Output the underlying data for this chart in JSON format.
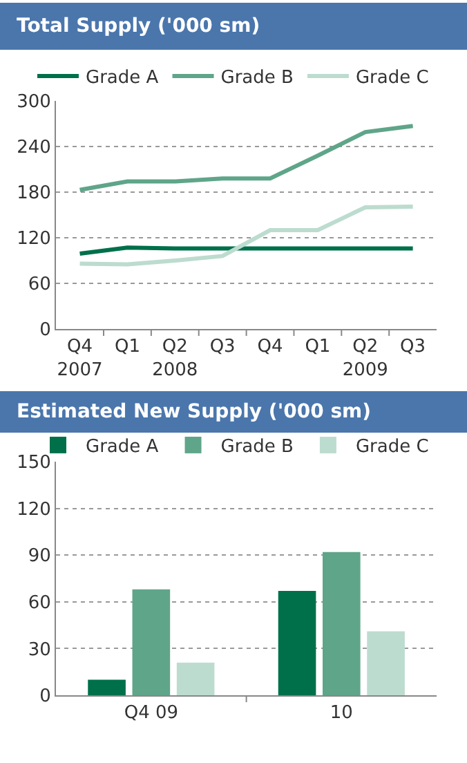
{
  "chart_data": [
    {
      "type": "line",
      "title": "Total Supply ('000 sm)",
      "categories": [
        "Q4\n2007",
        "Q1",
        "Q2\n2008",
        "Q3",
        "Q4",
        "Q1",
        "Q2\n2009",
        "Q3"
      ],
      "series": [
        {
          "name": "Grade A",
          "color": "#00704a",
          "values": [
            99,
            107,
            106,
            106,
            106,
            106,
            106,
            106
          ]
        },
        {
          "name": "Grade B",
          "color": "#5fa589",
          "values": [
            183,
            194,
            194,
            198,
            198,
            228,
            259,
            267
          ]
        },
        {
          "name": "Grade C",
          "color": "#bcdccf",
          "values": [
            86,
            85,
            90,
            96,
            130,
            130,
            160,
            161
          ]
        }
      ],
      "ylim": [
        0,
        300
      ],
      "yticks": [
        0,
        60,
        120,
        180,
        240,
        300
      ],
      "grid": "y",
      "legend": "top"
    },
    {
      "type": "bar",
      "title": "Estimated New Supply ('000 sm)",
      "categories": [
        "Q4 09",
        "10"
      ],
      "series": [
        {
          "name": "Grade A",
          "color": "#00704a",
          "values": [
            10,
            67
          ]
        },
        {
          "name": "Grade B",
          "color": "#5fa589",
          "values": [
            68,
            92
          ]
        },
        {
          "name": "Grade C",
          "color": "#bcdccf",
          "values": [
            21,
            41
          ]
        }
      ],
      "ylim": [
        0,
        150
      ],
      "yticks": [
        0,
        30,
        60,
        90,
        120,
        150
      ],
      "grid": "y",
      "legend": "top"
    }
  ]
}
